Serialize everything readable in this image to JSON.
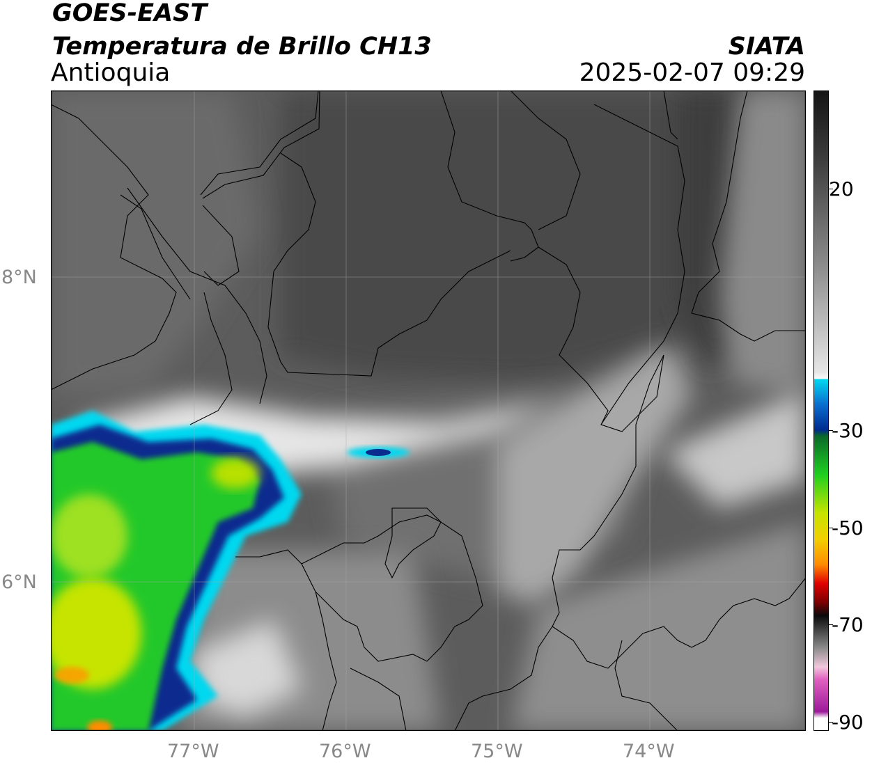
{
  "header": {
    "satellite": "GOES-EAST",
    "product": "Temperatura de Brillo CH13",
    "region": "Antioquia",
    "agency": "SIATA",
    "datetime": "2025-02-07 09:29"
  },
  "axes": {
    "lat_labels": [
      "8°N",
      "6°N"
    ],
    "lon_labels": [
      "77°W",
      "76°W",
      "75°W",
      "74°W"
    ]
  },
  "colorbar": {
    "ticks": [
      "20",
      "-30",
      "-50",
      "-70",
      "-90"
    ],
    "tick_values": [
      20,
      -30,
      -50,
      -70,
      -90
    ],
    "range": [
      -90,
      40
    ],
    "colors": {
      "warm_gray": "#333333",
      "light_gray": "#f0f0f0",
      "cyan": "#00d8f0",
      "navy": "#002a8f",
      "green": "#1fcf20",
      "yellow": "#f2f200",
      "orange": "#ff8c00",
      "red": "#e00000",
      "black": "#000000",
      "pink": "#f2b0d0",
      "magenta": "#9c1a9a"
    }
  }
}
